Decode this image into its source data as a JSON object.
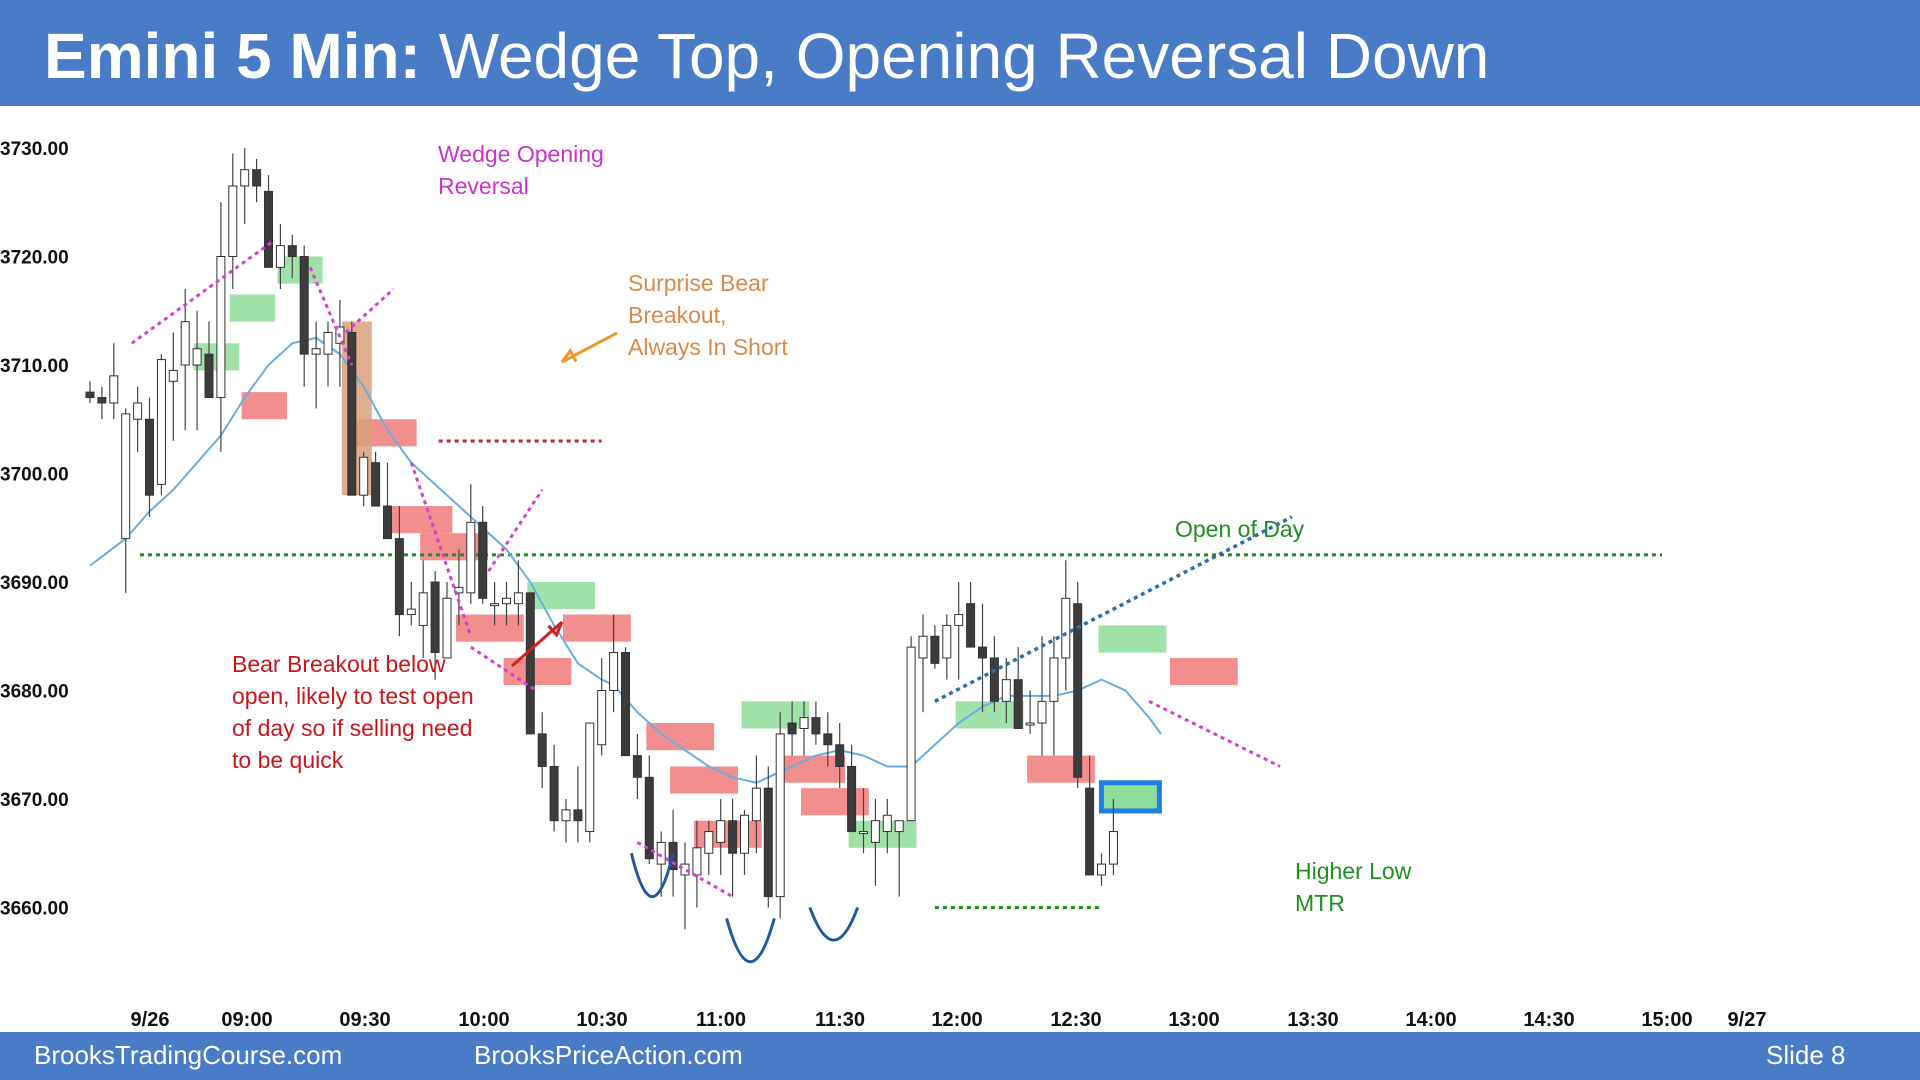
{
  "header": {
    "title_bold": "Emini 5 Min:",
    "title_rest": "Wedge Top, Opening Reversal Down"
  },
  "footer": {
    "left": "BrooksTradingCourse.com",
    "center": "BrooksPriceAction.com",
    "slide": "Slide  8"
  },
  "colors": {
    "header_bg": "#4a7bc6",
    "bull_bar": "#ffffff",
    "bear_bar": "#3c3c3c",
    "ema": "#6aaee0",
    "green_box": "#8fdb9a",
    "red_box": "#f07a7a",
    "open_line": "#1f8f1f"
  },
  "chart_data": {
    "type": "candlestick",
    "ylim": [
      3653,
      3733
    ],
    "y_ticks": [
      "3730.00",
      "3720.00",
      "3710.00",
      "3700.00",
      "3690.00",
      "3680.00",
      "3670.00",
      "3660.00"
    ],
    "x_ticks": [
      "9/26",
      "09:00",
      "09:30",
      "10:00",
      "10:30",
      "11:00",
      "11:30",
      "12:00",
      "12:30",
      "13:00",
      "13:30",
      "14:00",
      "14:30",
      "15:00",
      "9/27"
    ],
    "open_of_day": 3692.5,
    "bars": [
      [
        3707.5,
        3708.5,
        3706.5,
        3707
      ],
      [
        3707,
        3708,
        3705,
        3706.5
      ],
      [
        3706.5,
        3712,
        3705,
        3709
      ],
      [
        3694,
        3706,
        3689,
        3705.5
      ],
      [
        3705,
        3708,
        3702,
        3706.5
      ],
      [
        3705,
        3707,
        3696,
        3698
      ],
      [
        3699,
        3711,
        3698,
        3710.5
      ],
      [
        3708.5,
        3713,
        3703,
        3709.5
      ],
      [
        3710,
        3717,
        3704,
        3714
      ],
      [
        3710,
        3715,
        3704,
        3711.5
      ],
      [
        3711,
        3714,
        3707,
        3707
      ],
      [
        3707,
        3725,
        3702,
        3720
      ],
      [
        3720,
        3729.5,
        3717,
        3726.5
      ],
      [
        3726.5,
        3730,
        3723,
        3728
      ],
      [
        3728,
        3729,
        3725,
        3726.5
      ],
      [
        3726,
        3727.5,
        3719,
        3719
      ],
      [
        3719,
        3723,
        3717,
        3721
      ],
      [
        3721,
        3722,
        3718,
        3720
      ],
      [
        3720,
        3721,
        3708,
        3711
      ],
      [
        3711,
        3714,
        3706,
        3711.5
      ],
      [
        3711,
        3714,
        3708,
        3713
      ],
      [
        3712,
        3716,
        3708,
        3713.5
      ],
      [
        3713,
        3714,
        3698,
        3698
      ],
      [
        3698,
        3702,
        3697,
        3701.5
      ],
      [
        3701,
        3702,
        3697,
        3697
      ],
      [
        3697,
        3701,
        3694,
        3694
      ],
      [
        3694,
        3697,
        3685,
        3687
      ],
      [
        3687,
        3690,
        3686,
        3687.5
      ],
      [
        3686,
        3692,
        3683,
        3689
      ],
      [
        3690,
        3691,
        3681,
        3683.5
      ],
      [
        3683,
        3690,
        3683,
        3688.5
      ],
      [
        3689,
        3693,
        3686,
        3689.5
      ],
      [
        3689,
        3699,
        3688,
        3695.5
      ],
      [
        3695.5,
        3697,
        3688,
        3688.5
      ],
      [
        3688,
        3690,
        3686,
        3688
      ],
      [
        3688,
        3690,
        3686,
        3688.5
      ],
      [
        3688,
        3692,
        3686,
        3689
      ],
      [
        3689,
        3689,
        3676,
        3676
      ],
      [
        3676,
        3678,
        3671,
        3673
      ],
      [
        3673,
        3675,
        3667,
        3668
      ],
      [
        3668,
        3670,
        3666,
        3669
      ],
      [
        3669,
        3673,
        3666,
        3668
      ],
      [
        3667,
        3676,
        3666,
        3677
      ],
      [
        3675,
        3683,
        3674,
        3680
      ],
      [
        3680,
        3687,
        3678,
        3683.5
      ],
      [
        3683.5,
        3684,
        3674,
        3674
      ],
      [
        3674,
        3676,
        3670,
        3672
      ],
      [
        3672,
        3674,
        3664,
        3664.5
      ],
      [
        3664,
        3667,
        3661,
        3666
      ],
      [
        3666,
        3669,
        3661,
        3663.5
      ],
      [
        3663,
        3666,
        3658,
        3664
      ],
      [
        3663,
        3668,
        3660,
        3665.5
      ],
      [
        3665,
        3668,
        3663,
        3667
      ],
      [
        3666,
        3670,
        3663,
        3668
      ],
      [
        3668,
        3670,
        3661,
        3665
      ],
      [
        3665,
        3669,
        3663,
        3668.5
      ],
      [
        3668,
        3674,
        3665,
        3671
      ],
      [
        3671,
        3673,
        3660,
        3661
      ],
      [
        3661,
        3678,
        3659,
        3676
      ],
      [
        3677,
        3679,
        3674,
        3676
      ],
      [
        3676.5,
        3679,
        3674,
        3677.5
      ],
      [
        3677.5,
        3679,
        3675,
        3676
      ],
      [
        3676,
        3678,
        3673,
        3675
      ],
      [
        3675,
        3677,
        3671,
        3673
      ],
      [
        3673,
        3675,
        3670,
        3667
      ],
      [
        3667,
        3671,
        3665,
        3667
      ],
      [
        3666,
        3670,
        3662,
        3668
      ],
      [
        3667,
        3670,
        3665,
        3668.5
      ],
      [
        3667,
        3668,
        3661,
        3668
      ],
      [
        3668,
        3685,
        3668,
        3684
      ],
      [
        3683,
        3687,
        3678,
        3685
      ],
      [
        3685,
        3686,
        3682,
        3682.5
      ],
      [
        3683,
        3687,
        3681,
        3686
      ],
      [
        3686,
        3690,
        3681,
        3687
      ],
      [
        3688,
        3690,
        3684,
        3684
      ],
      [
        3684,
        3688,
        3678,
        3683
      ],
      [
        3683,
        3685,
        3678,
        3679
      ],
      [
        3679,
        3683,
        3677,
        3681
      ],
      [
        3681,
        3684,
        3677,
        3676.5
      ],
      [
        3677,
        3680,
        3676,
        3677
      ],
      [
        3677,
        3685,
        3674,
        3679
      ],
      [
        3679,
        3685,
        3674,
        3683
      ],
      [
        3683,
        3692,
        3680,
        3688.5
      ],
      [
        3688,
        3690,
        3671,
        3672
      ],
      [
        3671,
        3674,
        3663,
        3663
      ],
      [
        3663,
        3665,
        3662,
        3664
      ],
      [
        3664,
        3670,
        3663,
        3667
      ]
    ],
    "ema": [
      [
        0,
        3691.5
      ],
      [
        3,
        3694
      ],
      [
        5,
        3696.5
      ],
      [
        7,
        3698.5
      ],
      [
        9,
        3701
      ],
      [
        11,
        3703.5
      ],
      [
        13,
        3707
      ],
      [
        15,
        3710
      ],
      [
        17,
        3712
      ],
      [
        19,
        3712.5
      ],
      [
        21,
        3711
      ],
      [
        23,
        3708
      ],
      [
        25,
        3704
      ],
      [
        27,
        3701
      ],
      [
        29,
        3699
      ],
      [
        31,
        3697
      ],
      [
        33,
        3695
      ],
      [
        35,
        3693
      ],
      [
        37,
        3690
      ],
      [
        39,
        3686
      ],
      [
        41,
        3682.5
      ],
      [
        43,
        3681
      ],
      [
        44,
        3680.5
      ],
      [
        46,
        3678
      ],
      [
        48,
        3676
      ],
      [
        50,
        3674.5
      ],
      [
        52,
        3673
      ],
      [
        54,
        3672
      ],
      [
        56,
        3671.5
      ],
      [
        57,
        3672
      ],
      [
        59,
        3673
      ],
      [
        61,
        3674
      ],
      [
        63,
        3674.5
      ],
      [
        65,
        3674
      ],
      [
        67,
        3673
      ],
      [
        69,
        3673
      ],
      [
        71,
        3675
      ],
      [
        73,
        3677
      ],
      [
        75,
        3678.5
      ],
      [
        77,
        3679.5
      ],
      [
        79,
        3679.5
      ],
      [
        81,
        3679.5
      ],
      [
        83,
        3680
      ],
      [
        85,
        3681
      ],
      [
        87,
        3680
      ],
      [
        89,
        3677.5
      ],
      [
        90,
        3676
      ]
    ],
    "annotations": {
      "wedge": "Wedge Opening\nReversal",
      "surprise": "Surprise Bear\nBreakout,\nAlways In Short",
      "open_of_day": "Open of Day",
      "bear_breakout": "Bear Breakout below\nopen, likely to test open\nof day so if selling need\nto be quick",
      "higher_low": "Higher Low\nMTR"
    }
  }
}
